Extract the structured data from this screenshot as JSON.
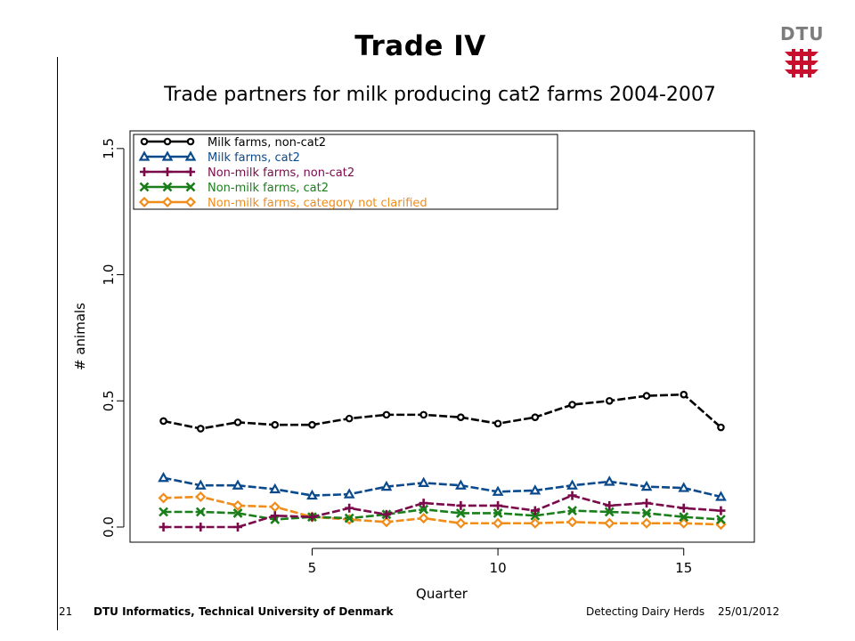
{
  "slide": {
    "title": "Trade IV",
    "logo_text": "DTU",
    "footer": {
      "page_number": "21",
      "organization": "DTU Informatics, Technical University of Denmark",
      "presentation": "Detecting Dairy Herds",
      "date": "25/01/2012"
    }
  },
  "colors": {
    "brand_red": "#c8102e",
    "logo_grey": "#7d7d7d"
  },
  "chart_data": {
    "type": "line",
    "title": "Trade partners for milk producing cat2 farms 2004-2007",
    "xlabel": "Quarter",
    "ylabel": "# animals",
    "xlim": [
      0.1,
      16.9
    ],
    "ylim": [
      -0.06,
      1.57
    ],
    "xticks": [
      5,
      10,
      15
    ],
    "yticks": [
      0.0,
      0.5,
      1.0,
      1.5
    ],
    "ytick_labels": [
      "0.0",
      "0.5",
      "1.0",
      "1.5"
    ],
    "grid": false,
    "legend_position": "top-left",
    "x": [
      1,
      2,
      3,
      4,
      5,
      6,
      7,
      8,
      9,
      10,
      11,
      12,
      13,
      14,
      15,
      16
    ],
    "series": [
      {
        "name": "Milk farms, non-cat2",
        "color": "#000000",
        "marker": "circle",
        "values": [
          0.42,
          0.39,
          0.415,
          0.405,
          0.405,
          0.43,
          0.445,
          0.445,
          0.435,
          0.41,
          0.435,
          0.485,
          0.5,
          0.52,
          0.525,
          0.395
        ]
      },
      {
        "name": "Milk farms, cat2",
        "color": "#0a4a8c",
        "marker": "triangle",
        "values": [
          0.195,
          0.165,
          0.165,
          0.15,
          0.125,
          0.13,
          0.16,
          0.175,
          0.165,
          0.14,
          0.145,
          0.165,
          0.18,
          0.16,
          0.155,
          0.12
        ]
      },
      {
        "name": "Non-milk farms, non-cat2",
        "color": "#7a0a4a",
        "marker": "plus",
        "values": [
          0.0,
          0.0,
          0.0,
          0.045,
          0.04,
          0.075,
          0.05,
          0.095,
          0.085,
          0.085,
          0.065,
          0.125,
          0.085,
          0.095,
          0.075,
          0.065
        ]
      },
      {
        "name": "Non-milk farms, cat2",
        "color": "#1a7f1a",
        "marker": "x",
        "values": [
          0.06,
          0.06,
          0.055,
          0.03,
          0.04,
          0.035,
          0.05,
          0.07,
          0.055,
          0.055,
          0.045,
          0.065,
          0.06,
          0.055,
          0.04,
          0.03
        ]
      },
      {
        "name": "Non-milk farms, category not clarified",
        "color": "#f08c1a",
        "marker": "diamond",
        "values": [
          0.115,
          0.12,
          0.085,
          0.08,
          0.04,
          0.03,
          0.02,
          0.035,
          0.015,
          0.015,
          0.015,
          0.02,
          0.015,
          0.015,
          0.015,
          0.01
        ]
      }
    ]
  }
}
